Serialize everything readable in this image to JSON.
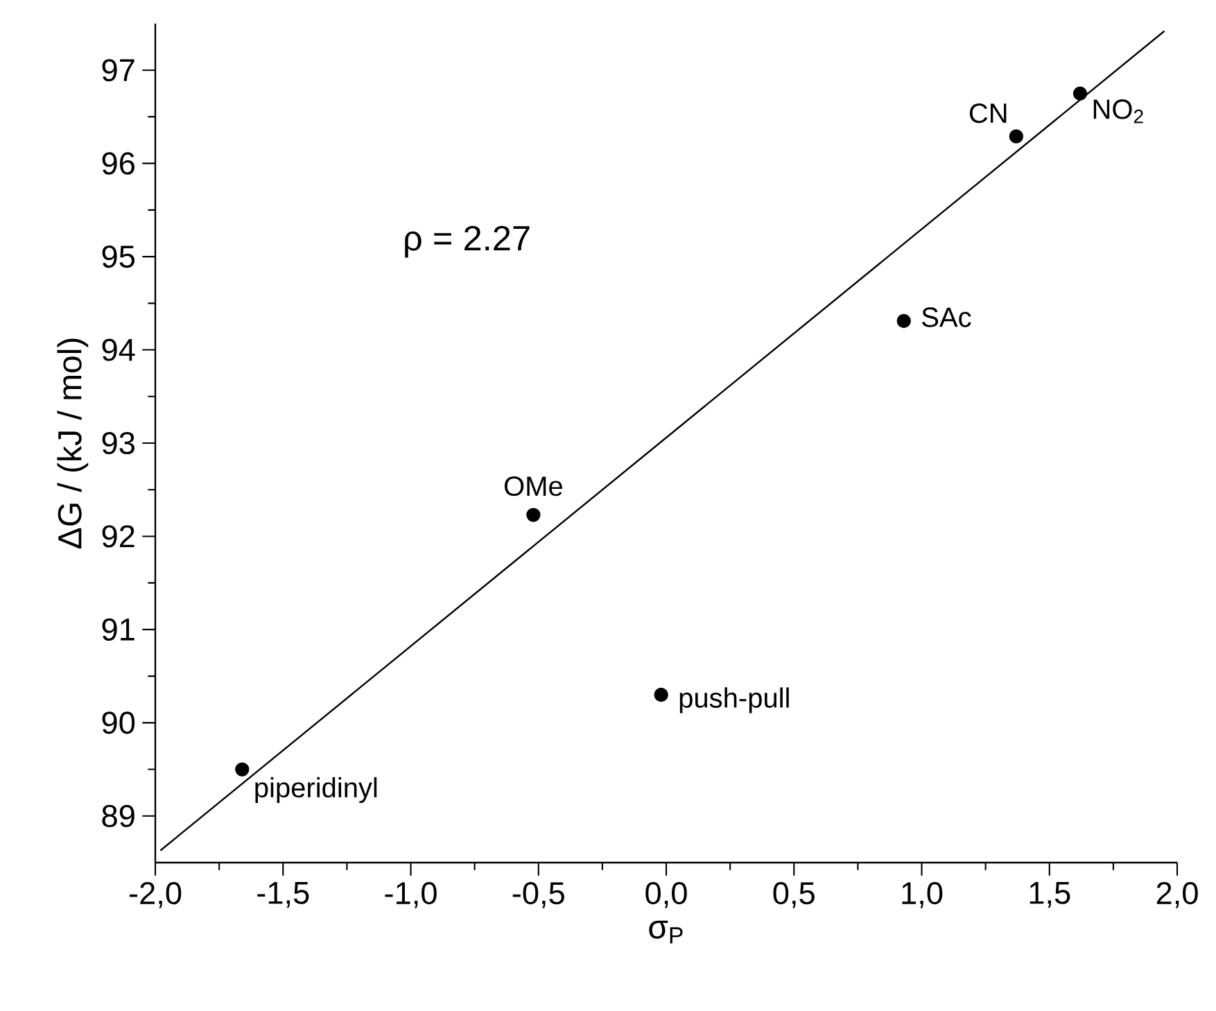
{
  "chart_data": {
    "type": "scatter",
    "xlabel": "σ$_{P}$",
    "ylabel": "ΔG / (kJ / mol)",
    "series": [
      {
        "color": "#000000",
        "marker": "circle",
        "x": [
          -1.66,
          -0.52,
          -0.02,
          0.93,
          1.37,
          1.62
        ],
        "values": [
          89.5,
          92.23,
          90.3,
          94.31,
          96.29,
          96.75
        ]
      },
      {
        "type": "line",
        "color": "#000000",
        "marker": "none",
        "line_style": "solid",
        "x": [
          -1.98,
          1.95
        ],
        "values": [
          88.63,
          97.42
        ]
      }
    ],
    "annotations": [
      "ρ = 2.27",
      {
        "text": "piperidinyl",
        "x": -1.66,
        "y": 89.5
      },
      {
        "text": "OMe",
        "x": -0.52,
        "y": 92.23
      },
      {
        "text": "push-pull",
        "x": -0.02,
        "y": 90.3
      },
      {
        "text": "SAc",
        "x": 0.93,
        "y": 94.31
      },
      {
        "text": "CN",
        "x": 1.37,
        "y": 96.29
      },
      {
        "text": "NO$_{2}$",
        "x": 1.62,
        "y": 96.75
      }
    ],
    "xlim": [
      -2.0,
      2.0
    ],
    "ylim": [
      88.5,
      97.5
    ],
    "xticks": [
      {
        "value": -2.0,
        "label": "-2,0"
      },
      {
        "value": -1.5,
        "label": "-1,5"
      },
      {
        "value": -1.0,
        "label": "-1,0"
      },
      {
        "value": -0.5,
        "label": "-0,5"
      },
      {
        "value": 0.0,
        "label": "0,0"
      },
      {
        "value": 0.5,
        "label": "0,5"
      },
      {
        "value": 1.0,
        "label": "1,0"
      },
      {
        "value": 1.5,
        "label": "1,5"
      },
      {
        "value": 2.0,
        "label": "2,0"
      }
    ],
    "yticks": [
      89,
      90,
      91,
      92,
      93,
      94,
      95,
      96,
      97
    ]
  }
}
